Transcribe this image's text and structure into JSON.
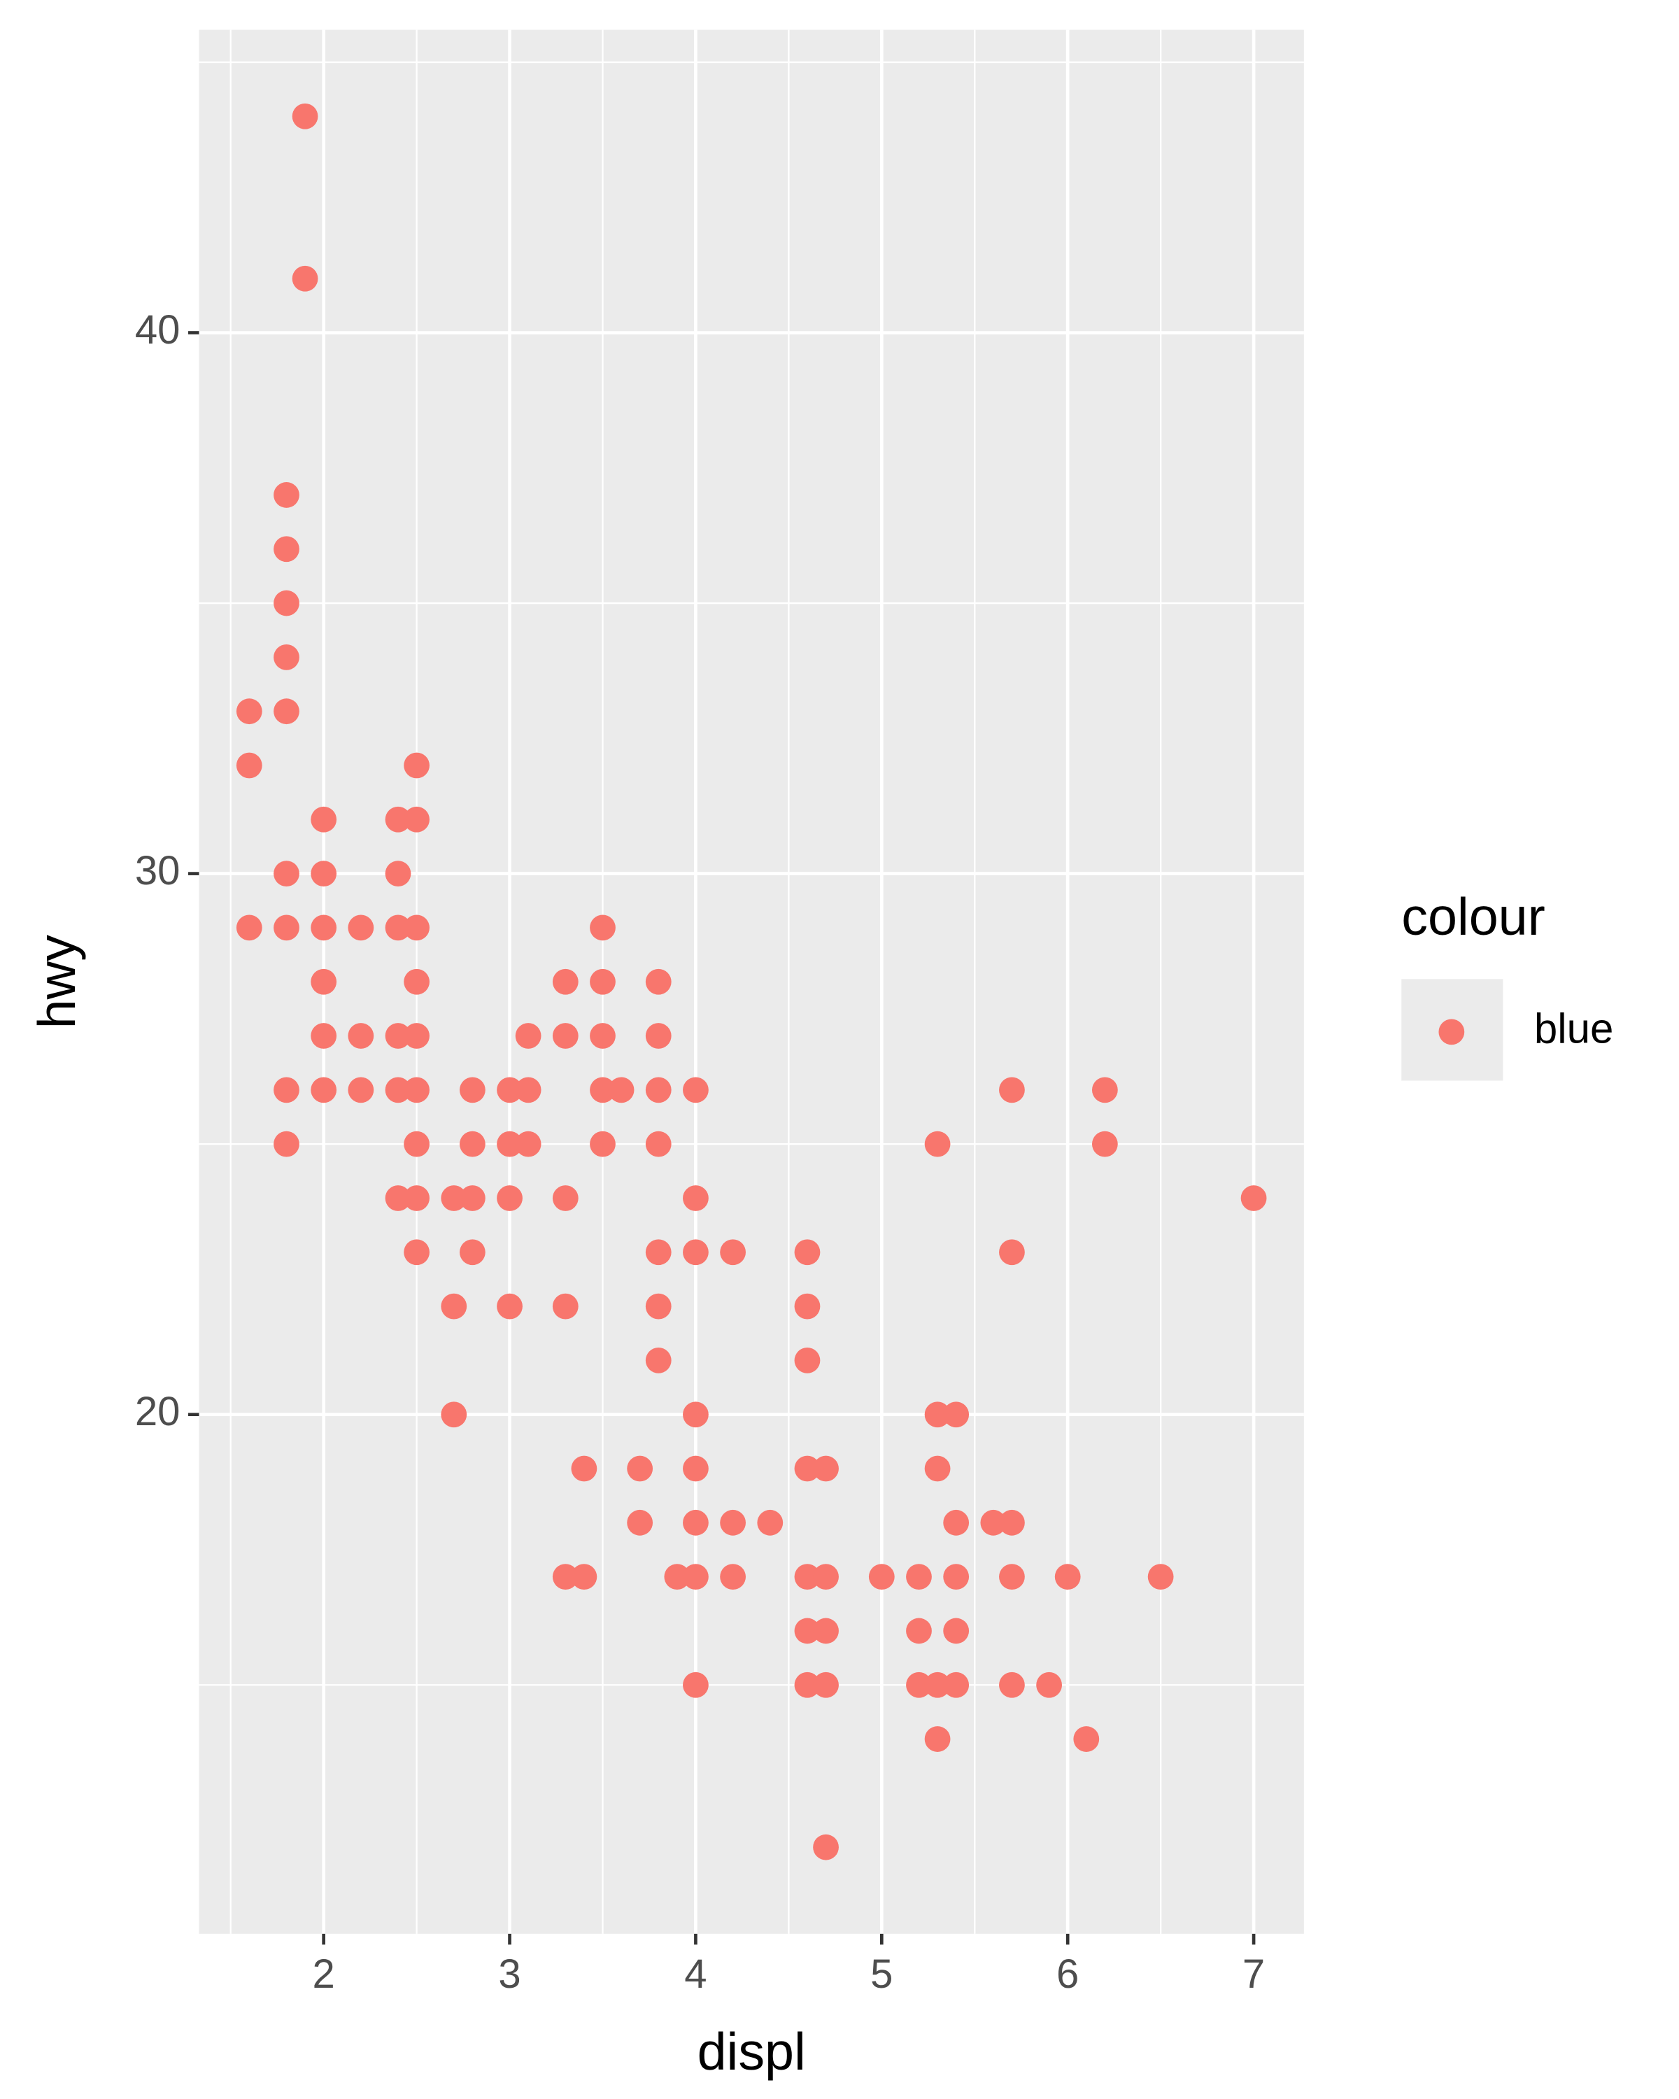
{
  "chart_data": {
    "type": "scatter",
    "x_label": "displ",
    "y_label": "hwy",
    "legend_title": "colour",
    "xlim": [
      1.33,
      7.27
    ],
    "ylim": [
      10.4,
      45.6
    ],
    "xticks": [
      2,
      3,
      4,
      5,
      6,
      7
    ],
    "yticks": [
      20,
      30,
      40
    ],
    "xminor": [
      1.5,
      2.5,
      3.5,
      4.5,
      5.5,
      6.5
    ],
    "yminor": [
      15,
      25,
      35,
      45
    ],
    "grid": true,
    "panel_color": "#EBEBEB",
    "legend_position": "right",
    "series": [
      {
        "name": "blue",
        "color": "#F8766D",
        "x": [
          1.9,
          1.9,
          1.8,
          1.8,
          1.8,
          1.8,
          1.6,
          1.8,
          1.6,
          2.5,
          2.0,
          2.4,
          2.5,
          1.8,
          2.0,
          2.4,
          1.6,
          1.8,
          2.0,
          2.2,
          2.4,
          2.5,
          3.5,
          2.0,
          2.5,
          3.3,
          3.5,
          3.8,
          2.0,
          2.2,
          2.4,
          2.5,
          3.1,
          3.3,
          3.5,
          3.8,
          1.8,
          2.0,
          2.2,
          2.4,
          2.5,
          2.8,
          3.0,
          3.1,
          3.5,
          3.6,
          3.8,
          4.0,
          5.7,
          6.2,
          1.8,
          2.5,
          2.8,
          3.0,
          3.1,
          3.5,
          3.8,
          5.3,
          6.2,
          2.4,
          2.5,
          2.7,
          2.8,
          3.0,
          3.3,
          4.0,
          7.0,
          2.5,
          2.8,
          3.8,
          4.0,
          4.2,
          4.6,
          5.7,
          2.7,
          3.0,
          3.3,
          3.8,
          4.6,
          3.8,
          4.6,
          2.7,
          4.0,
          5.3,
          5.4,
          3.4,
          3.7,
          4.0,
          4.6,
          4.7,
          5.3,
          3.7,
          4.0,
          4.2,
          4.4,
          5.4,
          5.6,
          5.7,
          3.3,
          3.4,
          3.9,
          4.0,
          4.2,
          4.6,
          4.7,
          5.0,
          5.2,
          5.4,
          5.7,
          6.0,
          6.5,
          4.6,
          4.7,
          5.2,
          5.4,
          4.0,
          4.6,
          4.7,
          5.2,
          5.3,
          5.4,
          5.7,
          5.9,
          5.3,
          6.1,
          4.7
        ],
        "y": [
          44,
          41,
          37,
          36,
          35,
          34,
          33,
          33,
          32,
          32,
          31,
          31,
          31,
          30,
          30,
          30,
          29,
          29,
          29,
          29,
          29,
          29,
          29,
          28,
          28,
          28,
          28,
          28,
          27,
          27,
          27,
          27,
          27,
          27,
          27,
          27,
          26,
          26,
          26,
          26,
          26,
          26,
          26,
          26,
          26,
          26,
          26,
          26,
          26,
          26,
          25,
          25,
          25,
          25,
          25,
          25,
          25,
          25,
          25,
          24,
          24,
          24,
          24,
          24,
          24,
          24,
          24,
          23,
          23,
          23,
          23,
          23,
          23,
          23,
          22,
          22,
          22,
          22,
          22,
          21,
          21,
          20,
          20,
          20,
          20,
          19,
          19,
          19,
          19,
          19,
          19,
          18,
          18,
          18,
          18,
          18,
          18,
          18,
          17,
          17,
          17,
          17,
          17,
          17,
          17,
          17,
          17,
          17,
          17,
          17,
          17,
          16,
          16,
          16,
          16,
          15,
          15,
          15,
          15,
          15,
          15,
          15,
          15,
          14,
          14,
          12
        ]
      }
    ]
  }
}
